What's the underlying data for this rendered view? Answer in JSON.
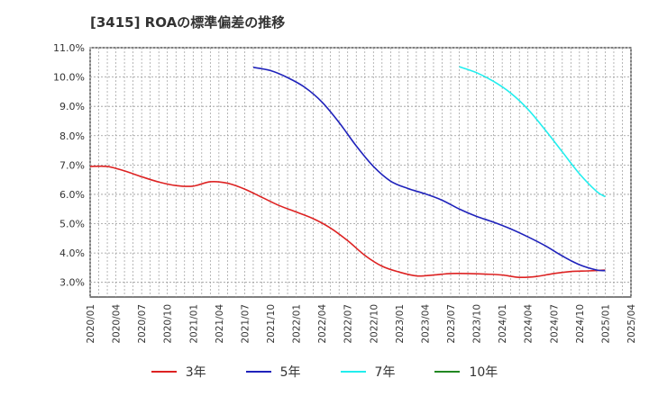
{
  "chart_data": {
    "type": "line",
    "title": "[3415]  ROAの標準偏差の推移",
    "ylim": [
      2.5,
      11.0
    ],
    "yticks": [
      3.0,
      4.0,
      5.0,
      6.0,
      7.0,
      8.0,
      9.0,
      10.0,
      11.0
    ],
    "ytick_labels": [
      "3.0%",
      "4.0%",
      "5.0%",
      "6.0%",
      "7.0%",
      "8.0%",
      "9.0%",
      "10.0%",
      "11.0%"
    ],
    "xticks": [
      "2020/01",
      "2020/04",
      "2020/07",
      "2020/10",
      "2021/01",
      "2021/04",
      "2021/07",
      "2021/10",
      "2022/01",
      "2022/04",
      "2022/07",
      "2022/10",
      "2023/01",
      "2023/04",
      "2023/07",
      "2023/10",
      "2024/01",
      "2024/04",
      "2024/07",
      "2024/10",
      "2025/01",
      "2025/04"
    ],
    "grid": true,
    "legend_position": "bottom",
    "series": [
      {
        "name": "3年",
        "color": "#dd2222",
        "x": [
          "2020/01",
          "2020/03",
          "2020/05",
          "2020/07",
          "2020/09",
          "2020/11",
          "2021/01",
          "2021/03",
          "2021/05",
          "2021/07",
          "2021/09",
          "2021/11",
          "2022/01",
          "2022/03",
          "2022/05",
          "2022/07",
          "2022/09",
          "2022/11",
          "2023/01",
          "2023/03",
          "2023/05",
          "2023/07",
          "2023/09",
          "2023/11",
          "2024/01",
          "2024/03",
          "2024/05",
          "2024/07",
          "2024/09",
          "2024/11",
          "2025/01"
        ],
        "values": [
          6.95,
          6.95,
          6.8,
          6.6,
          6.42,
          6.3,
          6.28,
          6.43,
          6.38,
          6.18,
          5.9,
          5.62,
          5.4,
          5.17,
          4.85,
          4.42,
          3.92,
          3.55,
          3.35,
          3.22,
          3.25,
          3.3,
          3.3,
          3.28,
          3.25,
          3.17,
          3.2,
          3.3,
          3.37,
          3.39,
          3.42
        ]
      },
      {
        "name": "5年",
        "color": "#1f22bb",
        "x": [
          "2021/08",
          "2021/10",
          "2021/12",
          "2022/02",
          "2022/04",
          "2022/06",
          "2022/08",
          "2022/10",
          "2022/12",
          "2023/02",
          "2023/04",
          "2023/06",
          "2023/08",
          "2023/10",
          "2023/12",
          "2024/02",
          "2024/04",
          "2024/06",
          "2024/08",
          "2024/10",
          "2024/12",
          "2025/01"
        ],
        "values": [
          10.33,
          10.22,
          9.98,
          9.65,
          9.15,
          8.45,
          7.65,
          6.95,
          6.45,
          6.2,
          6.02,
          5.8,
          5.5,
          5.25,
          5.05,
          4.82,
          4.55,
          4.25,
          3.9,
          3.6,
          3.42,
          3.4
        ]
      },
      {
        "name": "7年",
        "color": "#22eeee",
        "x": [
          "2023/08",
          "2023/10",
          "2023/12",
          "2024/02",
          "2024/04",
          "2024/06",
          "2024/08",
          "2024/10",
          "2024/12",
          "2025/01"
        ],
        "values": [
          10.35,
          10.15,
          9.85,
          9.45,
          8.9,
          8.2,
          7.45,
          6.7,
          6.1,
          5.92
        ]
      },
      {
        "name": "10年",
        "color": "#228822",
        "x": [],
        "values": []
      }
    ]
  }
}
